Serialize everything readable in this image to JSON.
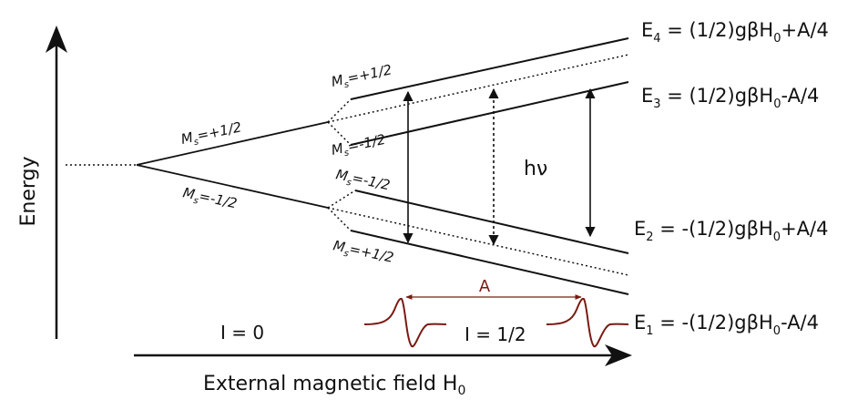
{
  "axes": {
    "y_label": "Energy",
    "x_label_main": "External magnetic field H",
    "x_label_sub": "0"
  },
  "ms_labels": {
    "upper": {
      "main": "M",
      "sub": "s",
      "val": "=+1/2"
    },
    "lower": {
      "main": "M",
      "sub": "s",
      "val": "=-1/2"
    },
    "e4": {
      "main": "M",
      "sub": "s",
      "val": "=+1/2"
    },
    "e3": {
      "main": "M",
      "sub": "s",
      "val": "=-1/2"
    },
    "e2": {
      "main": "M",
      "sub": "s",
      "val": "=-1/2"
    },
    "e1": {
      "main": "M",
      "sub": "s",
      "val": "=+1/2"
    }
  },
  "transition_label": "hν",
  "hyperfine_label": "A",
  "spin_labels": {
    "i0": "I = 0",
    "i12": "I = 1/2"
  },
  "energies": [
    {
      "E": "E",
      "n": "4",
      "pre": " = (1/2)gβH",
      "h": "0",
      "post": "+A/4"
    },
    {
      "E": "E",
      "n": "3",
      "pre": " = (1/2)gβH",
      "h": "0",
      "post": "-A/4"
    },
    {
      "E": "E",
      "n": "2",
      "pre": " = -(1/2)gβH",
      "h": "0",
      "post": "+A/4"
    },
    {
      "E": "E",
      "n": "1",
      "pre": " = -(1/2)gβH",
      "h": "0",
      "post": "-A/4"
    }
  ],
  "colors": {
    "line": "#111111",
    "signal": "#7a1a12"
  }
}
